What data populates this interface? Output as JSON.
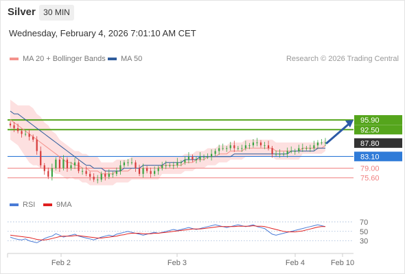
{
  "header": {
    "instrument": "Silver",
    "timeframe": "30 MIN",
    "datetime": "Wednesday, February 4, 2026 7:01:10 AM CET"
  },
  "legend": {
    "price_items": [
      {
        "label": "MA 20 + Bollinger Bands",
        "color": "#f4928c"
      },
      {
        "label": "MA 50",
        "color": "#2f5c9c"
      }
    ],
    "rsi_items": [
      {
        "label": "RSI",
        "color": "#4a7bd6"
      },
      {
        "label": "9MA",
        "color": "#e02020"
      }
    ],
    "credit": "Research © 2026 Trading Central"
  },
  "colors": {
    "bull": "#3aa341",
    "bear": "#d63a3a",
    "bollinger_fill": "#fde0e0",
    "ma20": "#f4928c",
    "ma50": "#2f5c9c",
    "resistance": "#55a51c",
    "pivot": "#2f7bd8",
    "support": "#f08080",
    "last_price": "#333333",
    "arrow": "#2c5aa6"
  },
  "chart_data": [
    {
      "type": "candlestick",
      "x_labels": [
        "Feb 2",
        "Feb 3",
        "Feb 4",
        "Feb 10"
      ],
      "ylim": [
        70,
        100
      ],
      "levels": [
        {
          "value": 95.9,
          "label": "95.90",
          "kind": "resistance"
        },
        {
          "value": 92.5,
          "label": "92.50",
          "kind": "resistance"
        },
        {
          "value": 87.8,
          "label": "87.80",
          "kind": "last"
        },
        {
          "value": 83.1,
          "label": "83.10",
          "kind": "pivot"
        },
        {
          "value": 79.0,
          "label": "79.00",
          "kind": "support"
        },
        {
          "value": 75.6,
          "label": "75.60",
          "kind": "support"
        }
      ],
      "close_path": [
        94,
        93,
        92,
        91,
        91,
        90,
        89,
        85,
        80,
        78,
        76,
        79,
        82,
        79,
        82,
        79,
        80,
        81,
        78,
        78,
        77,
        76,
        75,
        75,
        77,
        76,
        77,
        77,
        78,
        80,
        81,
        81,
        81,
        79,
        77,
        79,
        78,
        77,
        78,
        79,
        80,
        80,
        80,
        80,
        81,
        81,
        82,
        83,
        82,
        82,
        83,
        83,
        83,
        84,
        85,
        86,
        86,
        86,
        87,
        86,
        86,
        86,
        87,
        87,
        88,
        88,
        87,
        87,
        86,
        84,
        84,
        84,
        84,
        85,
        85,
        85,
        86,
        86,
        86,
        86,
        87,
        88,
        88,
        88
      ],
      "ma20_path": [
        96,
        95,
        94,
        93,
        92,
        91,
        90,
        89,
        88,
        87,
        86,
        85,
        84,
        83,
        82,
        81,
        81,
        80,
        80,
        79,
        79,
        78,
        78,
        78,
        77,
        77,
        77,
        77,
        78,
        78,
        78,
        78,
        79,
        79,
        79,
        79,
        79,
        79,
        79,
        79,
        80,
        80,
        80,
        80,
        80,
        80,
        81,
        81,
        81,
        82,
        82,
        82,
        83,
        83,
        83,
        84,
        84,
        84,
        85,
        85,
        85,
        85,
        86,
        86,
        86,
        86,
        86,
        86,
        86,
        86,
        85,
        85,
        85,
        85,
        85,
        85,
        85,
        86,
        86,
        86,
        86,
        86,
        86,
        87
      ],
      "ma50_path": [
        99,
        98,
        98,
        97,
        96,
        95,
        94,
        93,
        92,
        91,
        90,
        89,
        88,
        87,
        86,
        85,
        84,
        83,
        82,
        81,
        80,
        80,
        79,
        79,
        79,
        78,
        78,
        78,
        78,
        78,
        79,
        79,
        79,
        79,
        79,
        80,
        80,
        80,
        80,
        80,
        80,
        81,
        81,
        81,
        81,
        81,
        82,
        82,
        82,
        82,
        83,
        83,
        83,
        83,
        83,
        83,
        83,
        83,
        83,
        84,
        84,
        84,
        84,
        84,
        84,
        84,
        84,
        84,
        84,
        84,
        84,
        84,
        84,
        84,
        85,
        85,
        85,
        85,
        85,
        85,
        85,
        86,
        86,
        86
      ],
      "band_width_path": [
        7,
        7,
        7,
        8,
        9,
        10,
        10,
        9,
        9,
        8,
        8,
        7,
        7,
        6,
        6,
        6,
        5,
        5,
        5,
        5,
        5,
        5,
        5,
        5,
        4,
        4,
        4,
        4,
        4,
        4,
        4,
        4,
        4,
        4,
        4,
        4,
        4,
        4,
        4,
        4,
        3,
        3,
        3,
        3,
        3,
        3,
        3,
        3,
        3,
        3,
        3,
        3,
        3,
        3,
        3,
        3,
        3,
        3,
        3,
        3,
        3,
        3,
        3,
        3,
        3,
        3,
        3,
        3,
        3,
        3,
        3,
        3,
        3,
        3,
        3,
        3,
        3,
        2,
        2,
        2,
        2,
        2,
        2,
        2
      ],
      "projection": {
        "from": 87.8,
        "to": 95.9
      }
    },
    {
      "type": "line",
      "name": "RSI panel",
      "ylim": [
        15,
        80
      ],
      "ticks": [
        70,
        50,
        30
      ],
      "rsi": [
        38,
        35,
        33,
        32,
        34,
        30,
        28,
        26,
        30,
        35,
        38,
        40,
        45,
        42,
        38,
        40,
        42,
        44,
        40,
        38,
        36,
        34,
        32,
        35,
        38,
        40,
        42,
        40,
        44,
        46,
        48,
        50,
        48,
        46,
        44,
        42,
        44,
        46,
        48,
        46,
        48,
        50,
        52,
        54,
        52,
        54,
        56,
        58,
        56,
        54,
        56,
        58,
        60,
        62,
        64,
        62,
        60,
        58,
        60,
        62,
        64,
        62,
        60,
        62,
        64,
        60,
        58,
        56,
        50,
        44,
        42,
        44,
        46,
        48,
        50,
        52,
        54,
        56,
        58,
        60,
        62,
        64,
        62,
        60
      ],
      "ma9": [
        42,
        41,
        40,
        39,
        38,
        37,
        35,
        33,
        32,
        32,
        33,
        35,
        37,
        39,
        40,
        40,
        40,
        41,
        41,
        40,
        39,
        38,
        37,
        36,
        36,
        37,
        38,
        39,
        40,
        42,
        43,
        45,
        46,
        46,
        46,
        45,
        45,
        45,
        46,
        46,
        47,
        48,
        49,
        50,
        51,
        52,
        53,
        54,
        55,
        55,
        55,
        56,
        57,
        58,
        59,
        60,
        60,
        60,
        60,
        60,
        61,
        61,
        61,
        61,
        62,
        61,
        61,
        60,
        58,
        56,
        54,
        52,
        50,
        49,
        49,
        49,
        50,
        51,
        53,
        55,
        57,
        59,
        60,
        60
      ]
    }
  ]
}
